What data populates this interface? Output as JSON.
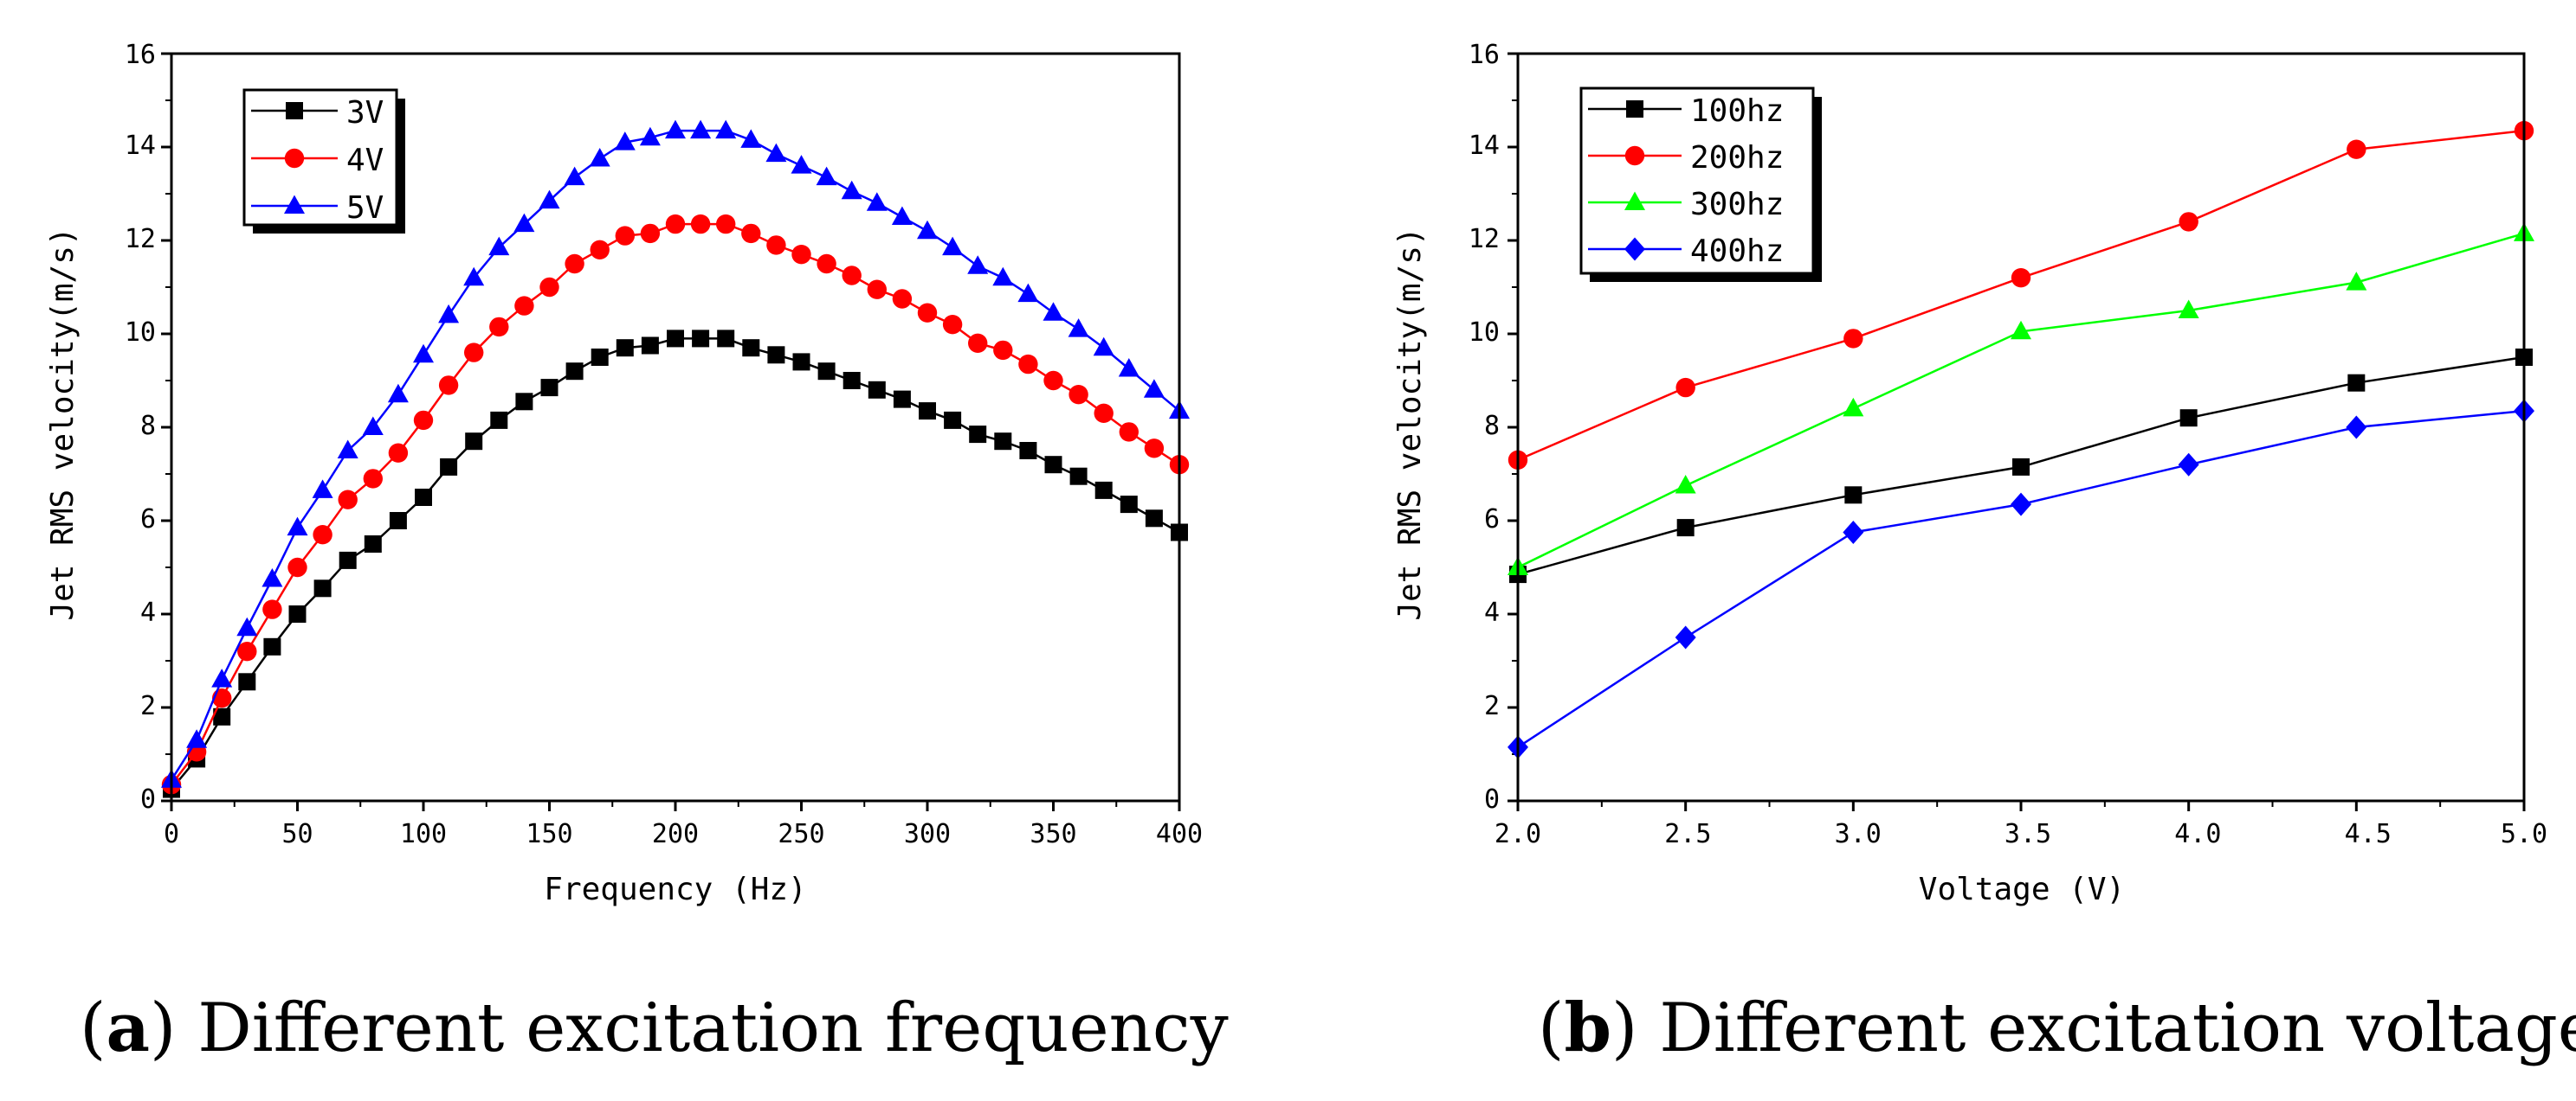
{
  "chart_data": [
    {
      "id": "a",
      "type": "line",
      "caption": {
        "letter": "a",
        "text": "Different excitation frequency"
      },
      "xlabel": "Frequency (Hz)",
      "ylabel": "Jet RMS velocity(m/s)",
      "xlim": [
        0,
        400
      ],
      "ylim": [
        0,
        16
      ],
      "xticks": [
        0,
        50,
        100,
        150,
        200,
        250,
        300,
        350,
        400
      ],
      "xtick_labels": [
        "0",
        "50",
        "100",
        "150",
        "200",
        "250",
        "300",
        "350",
        "400"
      ],
      "yticks": [
        0,
        2,
        4,
        6,
        8,
        10,
        12,
        14,
        16
      ],
      "ytick_labels": [
        "0",
        "2",
        "4",
        "6",
        "8",
        "10",
        "12",
        "14",
        "16"
      ],
      "legend_position": "top-left",
      "x": [
        0,
        10,
        20,
        30,
        40,
        50,
        60,
        70,
        80,
        90,
        100,
        110,
        120,
        130,
        140,
        150,
        160,
        170,
        180,
        190,
        200,
        210,
        220,
        230,
        240,
        250,
        260,
        270,
        280,
        290,
        300,
        310,
        320,
        330,
        340,
        350,
        360,
        370,
        380,
        390,
        400
      ],
      "series": [
        {
          "name": "3V",
          "color": "#000000",
          "marker": "square",
          "values": [
            0.25,
            0.9,
            1.8,
            2.55,
            3.3,
            4.0,
            4.55,
            5.15,
            5.5,
            6.0,
            6.5,
            7.15,
            7.7,
            8.15,
            8.55,
            8.85,
            9.2,
            9.5,
            9.7,
            9.75,
            9.9,
            9.9,
            9.9,
            9.7,
            9.55,
            9.4,
            9.2,
            9.0,
            8.8,
            8.6,
            8.35,
            8.15,
            7.85,
            7.7,
            7.5,
            7.2,
            6.95,
            6.65,
            6.35,
            6.05,
            5.75
          ]
        },
        {
          "name": "4V",
          "color": "#ff0000",
          "marker": "circle",
          "values": [
            0.35,
            1.05,
            2.2,
            3.2,
            4.1,
            5.0,
            5.7,
            6.45,
            6.9,
            7.45,
            8.15,
            8.9,
            9.6,
            10.15,
            10.6,
            11.0,
            11.5,
            11.8,
            12.1,
            12.15,
            12.35,
            12.35,
            12.35,
            12.15,
            11.9,
            11.7,
            11.5,
            11.25,
            10.95,
            10.75,
            10.45,
            10.2,
            9.8,
            9.65,
            9.35,
            9.0,
            8.7,
            8.3,
            7.9,
            7.55,
            7.2
          ]
        },
        {
          "name": "5V",
          "color": "#0000ff",
          "marker": "triangle",
          "values": [
            0.45,
            1.3,
            2.6,
            3.7,
            4.75,
            5.85,
            6.65,
            7.5,
            8.0,
            8.7,
            9.55,
            10.4,
            11.2,
            11.85,
            12.35,
            12.85,
            13.35,
            13.75,
            14.1,
            14.2,
            14.35,
            14.35,
            14.35,
            14.15,
            13.85,
            13.6,
            13.35,
            13.05,
            12.8,
            12.5,
            12.2,
            11.85,
            11.45,
            11.2,
            10.85,
            10.45,
            10.1,
            9.7,
            9.25,
            8.8,
            8.35
          ]
        }
      ]
    },
    {
      "id": "b",
      "type": "line",
      "caption": {
        "letter": "b",
        "text": "Different excitation voltage"
      },
      "xlabel": "Voltage (V)",
      "ylabel": "Jet RMS velocity(m/s)",
      "xlim": [
        2.0,
        5.0
      ],
      "ylim": [
        0,
        16
      ],
      "xticks": [
        2.0,
        2.5,
        3.0,
        3.5,
        4.0,
        4.5,
        5.0
      ],
      "xtick_labels": [
        "2.0",
        "2.5",
        "3.0",
        "3.5",
        "4.0",
        "4.5",
        "5.0"
      ],
      "yticks": [
        0,
        2,
        4,
        6,
        8,
        10,
        12,
        14,
        16
      ],
      "ytick_labels": [
        "0",
        "2",
        "4",
        "6",
        "8",
        "10",
        "12",
        "14",
        "16"
      ],
      "legend_position": "top-left",
      "x": [
        2.0,
        2.5,
        3.0,
        3.5,
        4.0,
        4.5,
        5.0
      ],
      "series": [
        {
          "name": "100hz",
          "color": "#000000",
          "marker": "square",
          "values": [
            4.85,
            5.85,
            6.55,
            7.15,
            8.2,
            8.95,
            9.5
          ]
        },
        {
          "name": "200hz",
          "color": "#ff0000",
          "marker": "circle",
          "values": [
            7.3,
            8.85,
            9.9,
            11.2,
            12.4,
            13.95,
            14.35
          ]
        },
        {
          "name": "300hz",
          "color": "#00ff00",
          "marker": "triangle",
          "values": [
            5.0,
            6.75,
            8.4,
            10.05,
            10.5,
            11.1,
            12.15
          ]
        },
        {
          "name": "400hz",
          "color": "#0000ff",
          "marker": "diamond",
          "values": [
            1.15,
            3.5,
            5.75,
            6.35,
            7.2,
            8.0,
            8.35
          ]
        }
      ]
    }
  ]
}
